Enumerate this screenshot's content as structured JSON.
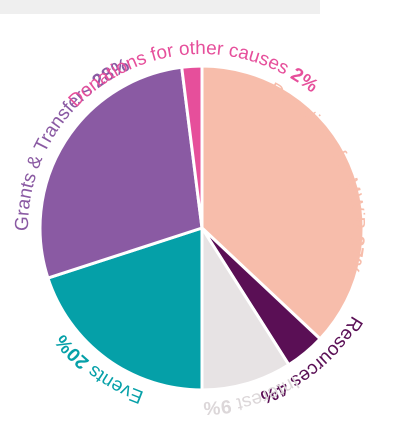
{
  "chart_data": {
    "type": "pie",
    "title": "",
    "slices": [
      {
        "label": "Donations for MWiB",
        "value": 37,
        "pct_text": "37%",
        "color": "#f7bdab",
        "text_color": "#f7bdab"
      },
      {
        "label": "Resources",
        "value": 4,
        "pct_text": "4%",
        "color": "#5a0f55",
        "text_color": "#5a0f55"
      },
      {
        "label": "Interest",
        "value": 9,
        "pct_text": "9%",
        "color": "#e7e3e4",
        "text_color": "#dcd7d9"
      },
      {
        "label": "Events",
        "value": 20,
        "pct_text": "20%",
        "color": "#05a0a8",
        "text_color": "#05a0a8"
      },
      {
        "label": "Grants & Transfers",
        "value": 28,
        "pct_text": "28%",
        "color": "#8a5aa3",
        "text_color": "#8a5aa3"
      },
      {
        "label": "Donations for other causes",
        "value": 2,
        "pct_text": "2%",
        "color": "#e64f9b",
        "text_color": "#e64f9b"
      }
    ],
    "start": "12 o'clock",
    "direction": "clockwise",
    "labels": "curved along outer edge"
  }
}
